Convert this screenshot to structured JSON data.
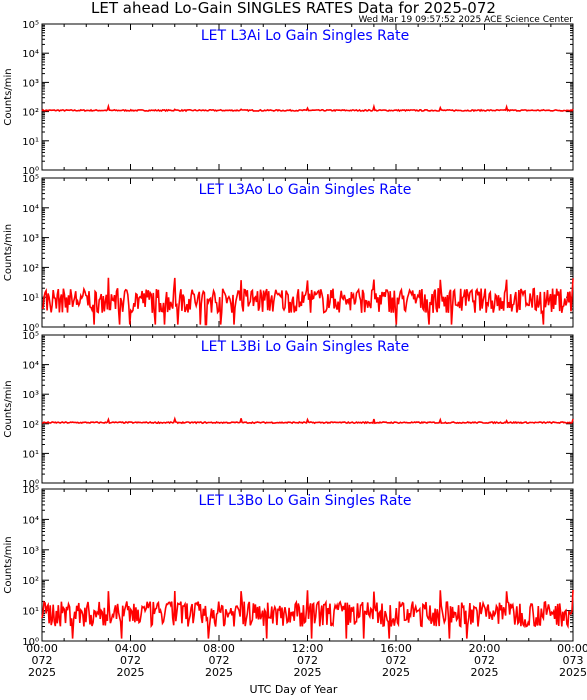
{
  "header": {
    "title": "LET ahead Lo-Gain SINGLES RATES Data for 2025-072",
    "timestamp": "Wed Mar 19 09:57:52 2025 ACE Science Center"
  },
  "xlabel": "UTC Day of Year",
  "colors": {
    "series": "#ff0000",
    "panel_title": "#0000ff",
    "axis": "#000000"
  },
  "chart_data": [
    {
      "type": "line",
      "title": "LET L3Ai Lo Gain Singles Rate",
      "ylabel": "Counts/min",
      "yscale": "log",
      "ylim": [
        1,
        100000
      ],
      "yticks": [
        "10⁰",
        "10¹",
        "10²",
        "10³",
        "10⁴",
        "10⁵"
      ],
      "xlim": [
        "2025-072 00:00",
        "2025-073 00:00"
      ],
      "series": [
        {
          "baseline": 110,
          "spike_values": 130,
          "spike_interval_hours": 1.5
        }
      ]
    },
    {
      "type": "line",
      "title": "LET L3Ao Lo Gain Singles Rate",
      "ylabel": "Counts/min",
      "yscale": "log",
      "ylim": [
        1,
        100000
      ],
      "yticks": [
        "10⁰",
        "10¹",
        "10²",
        "10³",
        "10⁴",
        "10⁵"
      ],
      "xlim": [
        "2025-072 00:00",
        "2025-073 00:00"
      ],
      "series": [
        {
          "baseline": 8,
          "noise_range": [
            3,
            20
          ],
          "spike_values": 40,
          "spike_interval_hours": 1.5
        }
      ]
    },
    {
      "type": "line",
      "title": "LET L3Bi Lo Gain Singles Rate",
      "ylabel": "Counts/min",
      "yscale": "log",
      "ylim": [
        1,
        100000
      ],
      "yticks": [
        "10⁰",
        "10¹",
        "10²",
        "10³",
        "10⁴",
        "10⁵"
      ],
      "xlim": [
        "2025-072 00:00",
        "2025-073 00:00"
      ],
      "series": [
        {
          "baseline": 110,
          "spike_values": 130,
          "spike_interval_hours": 1.5
        }
      ]
    },
    {
      "type": "line",
      "title": "LET L3Bo Lo Gain Singles Rate",
      "ylabel": "Counts/min",
      "yscale": "log",
      "ylim": [
        1,
        100000
      ],
      "yticks": [
        "10⁰",
        "10¹",
        "10²",
        "10³",
        "10⁴",
        "10⁵"
      ],
      "xlim": [
        "2025-072 00:00",
        "2025-073 00:00"
      ],
      "series": [
        {
          "baseline": 8,
          "noise_range": [
            3,
            20
          ],
          "spike_values": 40,
          "spike_interval_hours": 1.5
        }
      ]
    }
  ],
  "x_ticks": [
    {
      "time": "00:00",
      "doy": "072",
      "year": "2025"
    },
    {
      "time": "04:00",
      "doy": "072",
      "year": "2025"
    },
    {
      "time": "08:00",
      "doy": "072",
      "year": "2025"
    },
    {
      "time": "12:00",
      "doy": "072",
      "year": "2025"
    },
    {
      "time": "16:00",
      "doy": "072",
      "year": "2025"
    },
    {
      "time": "20:00",
      "doy": "072",
      "year": "2025"
    },
    {
      "time": "00:00",
      "doy": "073",
      "year": "2025"
    }
  ]
}
